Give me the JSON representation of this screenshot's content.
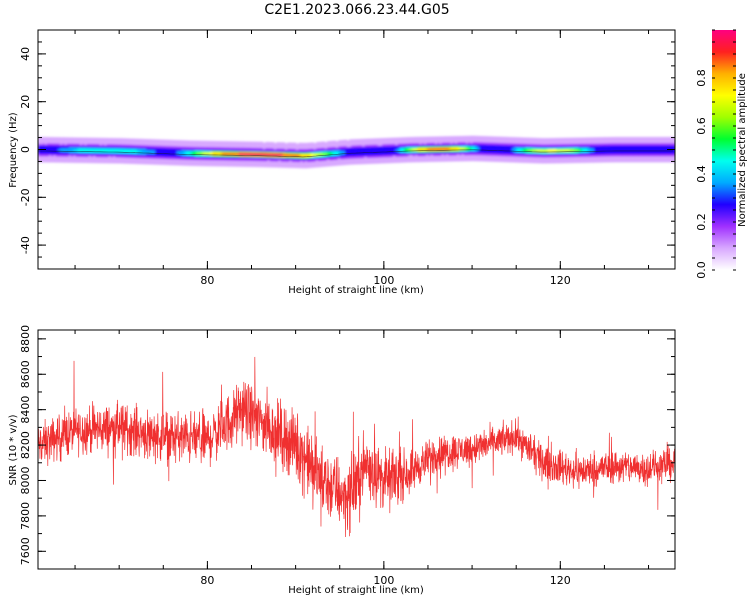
{
  "title": "C2E1.2023.066.23.44.G05",
  "colors": {
    "snr_line": "#f03030",
    "colormap": [
      "#ffffff",
      "#d8a8ff",
      "#a030ff",
      "#2000ff",
      "#00aaff",
      "#00ffee",
      "#00ff30",
      "#a0ff00",
      "#ffff00",
      "#ffb000",
      "#ff2020",
      "#ff0080"
    ]
  },
  "chart_data": [
    {
      "type": "heatmap",
      "title": "C2E1.2023.066.23.44.G05",
      "xlabel": "Height of straight line (km)",
      "ylabel": "Frequency (Hz)",
      "xlim": [
        60.8,
        133
      ],
      "ylim": [
        -50,
        50
      ],
      "xticks": [
        80,
        100,
        120
      ],
      "yticks": [
        -40,
        -20,
        0,
        20,
        40
      ],
      "colorbar": {
        "label": "Normalized spectral amplitude",
        "range": [
          0.0,
          1.0
        ],
        "ticks": [
          0.0,
          0.2,
          0.4,
          0.6,
          0.8
        ]
      },
      "band": {
        "center_hz": [
          [
            61,
            0
          ],
          [
            70,
            -0.5
          ],
          [
            78,
            -1.5
          ],
          [
            86,
            -2
          ],
          [
            91,
            -2.5
          ],
          [
            96,
            -1
          ],
          [
            103,
            0
          ],
          [
            110,
            0.5
          ],
          [
            118,
            -0.5
          ],
          [
            126,
            0
          ],
          [
            133,
            0
          ]
        ],
        "halfwidth_hz": 2.5,
        "glow_hz": 5,
        "peaks": [
          {
            "x": [
              76,
              96
            ],
            "center": -1.8,
            "level": 1.0
          },
          {
            "x": [
              101,
              111
            ],
            "center": 0.3,
            "level": 0.9
          },
          {
            "x": [
              114,
              124
            ],
            "center": -0.8,
            "level": 0.75
          },
          {
            "x": [
              62,
              75
            ],
            "center": -0.5,
            "level": 0.5
          }
        ]
      }
    },
    {
      "type": "line",
      "xlabel": "Height of straight line (km)",
      "ylabel": "SNR (10 * v/v)",
      "xlim": [
        60.8,
        133
      ],
      "ylim": [
        7500,
        8850
      ],
      "xticks": [
        80,
        100,
        120
      ],
      "yticks": [
        7600,
        7800,
        8000,
        8200,
        8400,
        8600,
        8800
      ],
      "series": [
        {
          "trend_x": [
            61,
            65,
            70,
            75,
            80,
            84,
            87,
            90,
            93,
            96,
            98,
            100,
            103,
            106,
            110,
            115,
            118,
            122,
            126,
            130,
            133
          ],
          "trend_y": [
            8200,
            8280,
            8300,
            8250,
            8230,
            8400,
            8300,
            8200,
            8000,
            7900,
            8100,
            8000,
            8050,
            8150,
            8180,
            8250,
            8100,
            8050,
            8080,
            8070,
            8100
          ],
          "noise_amplitude": [
            [
              61,
              180
            ],
            [
              80,
              220
            ],
            [
              87,
              260
            ],
            [
              90,
              280
            ],
            [
              97,
              300
            ],
            [
              104,
              160
            ],
            [
              112,
              130
            ],
            [
              120,
              140
            ],
            [
              133,
              140
            ]
          ]
        }
      ]
    }
  ]
}
